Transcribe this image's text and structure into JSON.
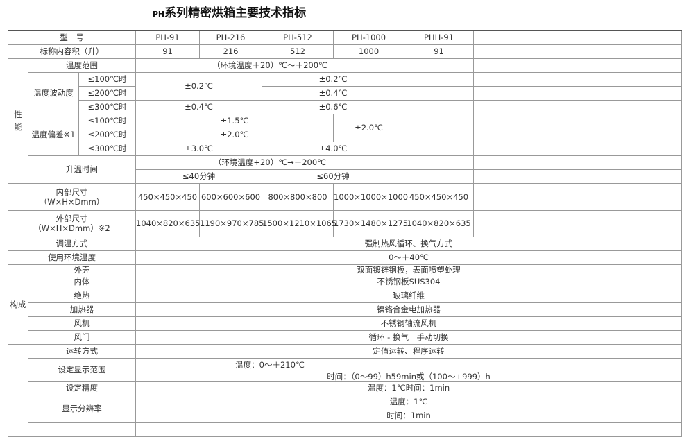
{
  "title": {
    "prefix": "PH",
    "main": "系列精密烘箱主要技术指标"
  },
  "header": {
    "label": "型　号",
    "models": [
      "PH-91",
      "PH-216",
      "PH-512",
      "PH-1000",
      "PHH-91"
    ]
  },
  "volume": {
    "label": "标称内容积（升）",
    "values": [
      "91",
      "216",
      "512",
      "1000",
      "91"
    ]
  },
  "performance": {
    "group": "性能",
    "temp_range": {
      "label": "温度范围",
      "value": "（环境温度＋20）℃～＋200℃"
    },
    "fluctuation": {
      "label": "温度波动度",
      "conds": [
        "≤100℃时",
        "≤200℃时",
        "≤300℃时"
      ],
      "a1": "±0.2℃",
      "b1": "±0.2℃",
      "b2": "±0.4℃",
      "a3": "±0.4℃",
      "b3": "±0.6℃"
    },
    "deviation": {
      "label": "温度偏差※1",
      "conds": [
        "≤100℃时",
        "≤200℃时",
        "≤300℃时"
      ],
      "a1": "±1.5℃",
      "b1": "±2.0℃",
      "a2": "±2.0℃",
      "a3": "±3.0℃",
      "b3": "±4.0℃"
    },
    "heatup": {
      "label": "升温时间",
      "range": "（环境温度+20）℃→＋200℃",
      "a": "≤40分钟",
      "b": "≤60分钟"
    }
  },
  "inner": {
    "label1": "内部尺寸",
    "label2": "（W×H×Dmm）",
    "values": [
      "450×450×450",
      "600×600×600",
      "800×800×800",
      "1000×1000×1000",
      "450×450×450"
    ]
  },
  "outer": {
    "label1": "外部尺寸",
    "label2": "（W×H×Dmm）※2",
    "values": [
      "1040×820×635",
      "1190×970×785",
      "1500×1210×1065",
      "1730×1480×1275",
      "1040×820×635"
    ]
  },
  "control": {
    "label": "调温方式",
    "value": "强制热风循环、换气方式"
  },
  "ambient": {
    "label": "使用环境温度",
    "value": "0～＋40℃"
  },
  "construction": {
    "group": "构成",
    "items": [
      {
        "label": "外壳",
        "value": "双面镀锌钢板，表面喷塑处理"
      },
      {
        "label": "内体",
        "value": "不锈钢板SUS304"
      },
      {
        "label": "绝热",
        "value": "玻璃纤维"
      },
      {
        "label": "加热器",
        "value": "镍铬合金电加热器"
      },
      {
        "label": "风机",
        "value": "不锈钢轴流风机"
      },
      {
        "label": "风门",
        "value": "循环 - 换气　手动切换"
      }
    ]
  },
  "controller": {
    "mode": {
      "label": "运转方式",
      "value": "定值运转、程序运转"
    },
    "range": {
      "label": "设定显示范围",
      "temp": "温度：0～＋210℃",
      "time": "时间：（0～99）h59min或（100～+999）h"
    },
    "precision": {
      "label": "设定精度",
      "value": "温度：1℃时间：1min"
    },
    "resolution": {
      "label": "显示分辨率",
      "temp": "温度：1℃",
      "time": "时间：1min"
    }
  }
}
